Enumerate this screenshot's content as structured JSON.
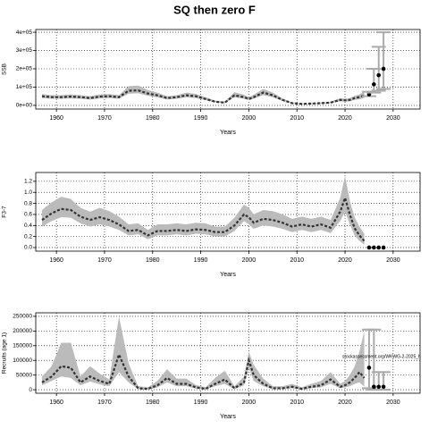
{
  "chart_data": [
    {
      "type": "line",
      "title": "SQ then zero F",
      "xlabel": "Years",
      "ylabel": "SSB",
      "xlim": [
        1955.7,
        2035.6
      ],
      "ylim": [
        -20000,
        415000
      ],
      "xticks": [
        1960,
        1970,
        1980,
        1990,
        2000,
        2010,
        2020,
        2030
      ],
      "yticks": [
        {
          "value": 0,
          "label": "0e+00"
        },
        {
          "value": 100000,
          "label": "1e+05"
        },
        {
          "value": 200000,
          "label": "2e+05"
        },
        {
          "value": 300000,
          "label": "3e+05"
        },
        {
          "value": 400000,
          "label": "4e+05"
        }
      ],
      "grid": true,
      "line_color": "#333333",
      "band_color": "#bbbbbb",
      "point_color": "#000000",
      "proj_bar_color": "#aaaaaa",
      "x": [
        1957,
        1959,
        1961,
        1963,
        1965,
        1967,
        1969,
        1971,
        1973,
        1975,
        1977,
        1979,
        1981,
        1983,
        1985,
        1987,
        1989,
        1991,
        1993,
        1995,
        1997,
        1999,
        2000,
        2001,
        2003,
        2005,
        2007,
        2009,
        2011,
        2013,
        2015,
        2017,
        2019,
        2020,
        2021,
        2022,
        2023,
        2024
      ],
      "values": [
        50000,
        45000,
        45000,
        48000,
        45000,
        40000,
        48000,
        50000,
        45000,
        80000,
        82000,
        65000,
        55000,
        40000,
        45000,
        55000,
        50000,
        35000,
        20000,
        15000,
        55000,
        45000,
        35000,
        45000,
        70000,
        55000,
        30000,
        12000,
        8000,
        10000,
        12000,
        15000,
        30000,
        28000,
        30000,
        40000,
        45000,
        55000
      ],
      "lower": [
        40000,
        36000,
        36000,
        38000,
        36000,
        32000,
        38000,
        40000,
        36000,
        64000,
        66000,
        52000,
        44000,
        32000,
        36000,
        44000,
        40000,
        28000,
        16000,
        12000,
        44000,
        36000,
        28000,
        36000,
        56000,
        44000,
        24000,
        9000,
        6000,
        7000,
        9000,
        11000,
        22000,
        20000,
        22000,
        30000,
        33000,
        40000
      ],
      "upper": [
        62000,
        56000,
        56000,
        60000,
        56000,
        50000,
        60000,
        62000,
        56000,
        105000,
        108000,
        84000,
        70000,
        50000,
        56000,
        70000,
        63000,
        45000,
        26000,
        20000,
        72000,
        58000,
        45000,
        58000,
        90000,
        70000,
        38000,
        16000,
        11000,
        13000,
        16000,
        20000,
        40000,
        37000,
        40000,
        53000,
        60000,
        74000
      ],
      "proj_x": [
        2025,
        2026,
        2027,
        2028
      ],
      "proj_values": [
        60000,
        115000,
        165000,
        200000
      ],
      "proj_lower": [
        50000,
        70000,
        80000,
        90000
      ],
      "proj_upper": [
        75000,
        200000,
        320000,
        400000
      ]
    },
    {
      "type": "line",
      "xlabel": "Years",
      "ylabel": "F3-7",
      "xlim": [
        1955.7,
        2035.6
      ],
      "ylim": [
        -0.065,
        1.36
      ],
      "xticks": [
        1960,
        1970,
        1980,
        1990,
        2000,
        2010,
        2020,
        2030
      ],
      "yticks": [
        {
          "value": 0,
          "label": "0.0"
        },
        {
          "value": 0.2,
          "label": "0.2"
        },
        {
          "value": 0.4,
          "label": "0.4"
        },
        {
          "value": 0.6,
          "label": "0.6"
        },
        {
          "value": 0.8,
          "label": "0.8"
        },
        {
          "value": 1,
          "label": "1.0"
        },
        {
          "value": 1.2,
          "label": "1.2"
        }
      ],
      "grid": true,
      "line_color": "#333333",
      "band_color": "#bbbbbb",
      "point_color": "#000000",
      "proj_bar_color": "#aaaaaa",
      "x": [
        1957,
        1959,
        1961,
        1963,
        1965,
        1967,
        1969,
        1971,
        1973,
        1975,
        1977,
        1979,
        1981,
        1983,
        1985,
        1987,
        1989,
        1991,
        1993,
        1995,
        1997,
        1999,
        2000,
        2001,
        2003,
        2005,
        2007,
        2009,
        2011,
        2013,
        2015,
        2017,
        2019,
        2020,
        2021,
        2022,
        2023,
        2024
      ],
      "values": [
        0.5,
        0.62,
        0.7,
        0.68,
        0.56,
        0.5,
        0.55,
        0.5,
        0.42,
        0.3,
        0.32,
        0.22,
        0.3,
        0.3,
        0.32,
        0.3,
        0.33,
        0.32,
        0.28,
        0.28,
        0.4,
        0.6,
        0.55,
        0.45,
        0.52,
        0.5,
        0.45,
        0.38,
        0.42,
        0.38,
        0.42,
        0.36,
        0.65,
        0.9,
        0.6,
        0.35,
        0.22,
        0.12
      ],
      "lower": [
        0.38,
        0.48,
        0.55,
        0.54,
        0.44,
        0.38,
        0.42,
        0.38,
        0.32,
        0.22,
        0.24,
        0.15,
        0.22,
        0.22,
        0.24,
        0.22,
        0.25,
        0.24,
        0.2,
        0.2,
        0.3,
        0.48,
        0.42,
        0.34,
        0.4,
        0.38,
        0.34,
        0.28,
        0.32,
        0.28,
        0.32,
        0.26,
        0.48,
        0.65,
        0.42,
        0.22,
        0.12,
        0.05
      ],
      "upper": [
        0.68,
        0.82,
        0.92,
        0.88,
        0.72,
        0.65,
        0.72,
        0.66,
        0.56,
        0.42,
        0.44,
        0.32,
        0.42,
        0.42,
        0.44,
        0.42,
        0.45,
        0.44,
        0.38,
        0.38,
        0.54,
        0.78,
        0.72,
        0.6,
        0.68,
        0.66,
        0.6,
        0.52,
        0.56,
        0.52,
        0.56,
        0.5,
        0.9,
        1.3,
        0.85,
        0.55,
        0.38,
        0.25
      ],
      "proj_x": [
        2025,
        2026,
        2027,
        2028
      ],
      "proj_values": [
        0,
        0,
        0,
        0
      ]
    },
    {
      "type": "line",
      "xlabel": "Years",
      "ylabel": "Recruits (age 1)",
      "annotation": "stockassessment.org/WKWG-2-2025_h",
      "xlim": [
        1955.7,
        2035.6
      ],
      "ylim": [
        -12000,
        262000
      ],
      "xticks": [
        1960,
        1970,
        1980,
        1990,
        2000,
        2010,
        2020,
        2030
      ],
      "yticks": [
        0,
        50000,
        100000,
        150000,
        200000,
        250000
      ],
      "grid": true,
      "line_color": "#333333",
      "band_color": "#bbbbbb",
      "point_color": "#000000",
      "proj_bar_color": "#aaaaaa",
      "x": [
        1957,
        1959,
        1961,
        1963,
        1965,
        1967,
        1969,
        1971,
        1973,
        1975,
        1977,
        1979,
        1981,
        1983,
        1985,
        1987,
        1989,
        1991,
        1993,
        1995,
        1997,
        1999,
        2000,
        2001,
        2003,
        2005,
        2007,
        2009,
        2011,
        2013,
        2015,
        2017,
        2019,
        2020,
        2021,
        2022,
        2023,
        2024
      ],
      "values": [
        25000,
        45000,
        80000,
        75000,
        25000,
        45000,
        30000,
        20000,
        120000,
        45000,
        5000,
        3000,
        15000,
        40000,
        20000,
        20000,
        8000,
        3000,
        20000,
        35000,
        5000,
        25000,
        100000,
        50000,
        20000,
        5000,
        5000,
        10000,
        3000,
        10000,
        15000,
        35000,
        10000,
        15000,
        25000,
        40000,
        60000,
        40000
      ],
      "lower": [
        15000,
        30000,
        45000,
        40000,
        15000,
        28000,
        18000,
        12000,
        60000,
        25000,
        2000,
        1000,
        8000,
        25000,
        12000,
        12000,
        4000,
        1000,
        12000,
        20000,
        2000,
        15000,
        75000,
        30000,
        12000,
        2000,
        2000,
        5000,
        1000,
        5000,
        8000,
        20000,
        5000,
        8000,
        12000,
        20000,
        25000,
        10000
      ],
      "upper": [
        45000,
        80000,
        160000,
        160000,
        45000,
        80000,
        55000,
        35000,
        250000,
        90000,
        12000,
        8000,
        30000,
        70000,
        38000,
        38000,
        16000,
        8000,
        40000,
        65000,
        12000,
        45000,
        130000,
        85000,
        38000,
        12000,
        12000,
        20000,
        8000,
        20000,
        30000,
        60000,
        20000,
        30000,
        50000,
        80000,
        130000,
        200000
      ],
      "proj_x": [
        2025,
        2026,
        2027,
        2028
      ],
      "proj_values": [
        75000,
        10000,
        10000,
        10000
      ],
      "proj_lower": [
        5000,
        0,
        0,
        0
      ],
      "proj_upper": [
        205000,
        205000,
        60000,
        60000
      ]
    }
  ]
}
